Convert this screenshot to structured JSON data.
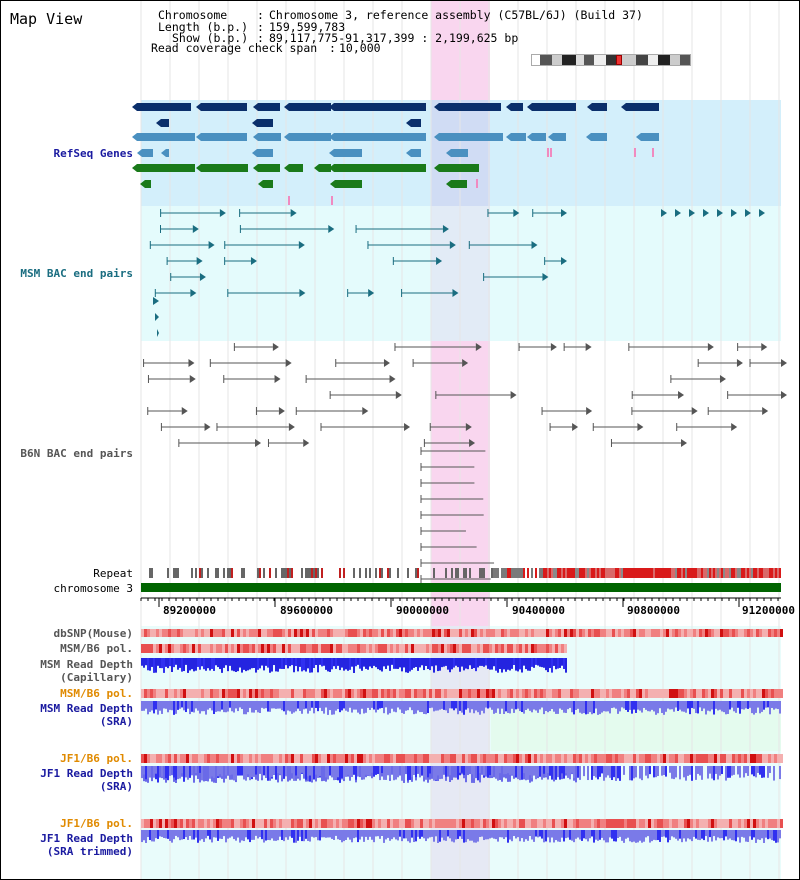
{
  "page": {
    "title": "Map View"
  },
  "info": {
    "chromosome_key": "Chromosome",
    "chromosome_value": "Chromosome 3, reference assembly (C57BL/6J) (Build 37)",
    "length_key": "Length (b.p.)",
    "length_value": "159,599,783",
    "show_key": "Show (b.p.)",
    "show_value": "89,117,775-91,317,399 : 2,199,625 bp",
    "coverage_key": "Read coverage check span",
    "coverage_value": "10,000"
  },
  "tracks": {
    "refseq": "RefSeq Genes",
    "msm_bac": "MSM BAC end pairs",
    "b6n_bac": "B6N BAC end pairs",
    "repeat": "Repeat",
    "chromosome": "chromosome 3",
    "dbsnp": "dbSNP(Mouse)",
    "msm_b6_pol_1": "MSM/B6 pol.",
    "msm_read_depth_cap_1": "MSM Read Depth",
    "msm_read_depth_cap_2": "(Capillary)",
    "msm_b6_pol_2": "MSM/B6 pol.",
    "msm_read_depth_sra_1": "MSM Read Depth",
    "msm_read_depth_sra_2": "(SRA)",
    "jf1_b6_pol_1": "JF1/B6 pol.",
    "jf1_read_depth_1": "JF1 Read Depth",
    "jf1_read_depth_2": "(SRA)",
    "jf1_b6_pol_2": "JF1/B6 pol.",
    "jf1_read_depth_trim_1": "JF1 Read Depth",
    "jf1_read_depth_trim_2": "(SRA trimmed)"
  },
  "ruler": {
    "ticks": [
      "89200000",
      "89600000",
      "90000000",
      "90400000",
      "90800000",
      "91200000"
    ]
  },
  "colors": {
    "refseq_label": "#1a1aa0",
    "msm_label": "#1a6d80",
    "b6n_label": "#555555",
    "pol_orange": "#e08a00",
    "depth_blue": "#1a1aa0",
    "highlight": "#f7c8ea"
  }
}
